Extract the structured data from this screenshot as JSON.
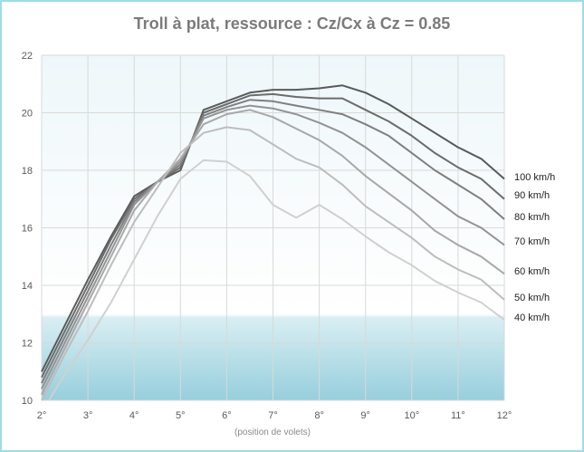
{
  "chart_data": {
    "type": "line",
    "title": "Troll à plat, ressource : Cz/Cx à Cz = 0.85",
    "xlabel": "(position de volets)",
    "ylabel": "",
    "x": [
      2,
      2.5,
      3,
      3.5,
      4,
      4.5,
      5,
      5.5,
      6,
      6.5,
      7,
      7.5,
      8,
      8.5,
      9,
      9.5,
      10,
      10.5,
      11,
      11.5,
      12
    ],
    "x_tick_labels": [
      "2°",
      "3°",
      "4°",
      "5°",
      "6°",
      "7°",
      "8°",
      "9°",
      "10°",
      "11°",
      "12°"
    ],
    "x_ticks": [
      2,
      3,
      4,
      5,
      6,
      7,
      8,
      9,
      10,
      11,
      12
    ],
    "y_ticks": [
      10,
      12,
      14,
      16,
      18,
      20,
      22
    ],
    "xlim": [
      2,
      12
    ],
    "ylim": [
      10,
      22
    ],
    "grid": true,
    "legend": "labels at right end of lines",
    "series": [
      {
        "name": "100 km/h",
        "color": "#5a5a5a",
        "values": [
          11.0,
          12.6,
          14.2,
          15.7,
          17.1,
          17.6,
          18.0,
          20.1,
          20.4,
          20.7,
          20.8,
          20.8,
          20.85,
          20.95,
          20.7,
          20.3,
          19.8,
          19.3,
          18.8,
          18.4,
          17.7
        ]
      },
      {
        "name": "90 km/h",
        "color": "#6c6c6c",
        "values": [
          10.8,
          12.4,
          14.0,
          15.6,
          17.0,
          17.6,
          18.1,
          20.0,
          20.3,
          20.6,
          20.65,
          20.55,
          20.5,
          20.5,
          20.1,
          19.7,
          19.2,
          18.6,
          18.1,
          17.7,
          17.0
        ]
      },
      {
        "name": "80 km/h",
        "color": "#7f7f7f",
        "values": [
          10.6,
          12.2,
          13.8,
          15.4,
          16.9,
          17.6,
          18.2,
          19.9,
          20.2,
          20.45,
          20.4,
          20.25,
          20.1,
          19.95,
          19.6,
          19.2,
          18.6,
          18.0,
          17.5,
          17.0,
          16.3
        ]
      },
      {
        "name": "70 km/h",
        "color": "#939393",
        "values": [
          10.4,
          12.0,
          13.6,
          15.2,
          16.8,
          17.6,
          18.3,
          19.8,
          20.1,
          20.25,
          20.15,
          19.95,
          19.65,
          19.3,
          18.8,
          18.2,
          17.6,
          17.0,
          16.4,
          16.0,
          15.4
        ]
      },
      {
        "name": "60 km/h",
        "color": "#a8a8a8",
        "values": [
          10.2,
          11.8,
          13.4,
          15.0,
          16.6,
          17.6,
          18.4,
          19.6,
          19.95,
          20.1,
          19.85,
          19.45,
          19.05,
          18.5,
          17.8,
          17.2,
          16.6,
          15.9,
          15.4,
          15.0,
          14.4
        ]
      },
      {
        "name": "50 km/h",
        "color": "#bdbdbd",
        "values": [
          10.0,
          11.6,
          13.1,
          14.7,
          16.2,
          17.4,
          18.6,
          19.3,
          19.5,
          19.4,
          18.9,
          18.4,
          18.1,
          17.5,
          16.75,
          16.2,
          15.65,
          15.0,
          14.55,
          14.2,
          13.5
        ]
      },
      {
        "name": "40 km/h",
        "color": "#d0d0d0",
        "values": [
          9.6,
          10.9,
          12.1,
          13.4,
          14.9,
          16.4,
          17.7,
          18.35,
          18.3,
          17.8,
          16.8,
          16.35,
          16.8,
          16.3,
          15.7,
          15.15,
          14.7,
          14.15,
          13.75,
          13.4,
          12.8
        ]
      }
    ]
  }
}
